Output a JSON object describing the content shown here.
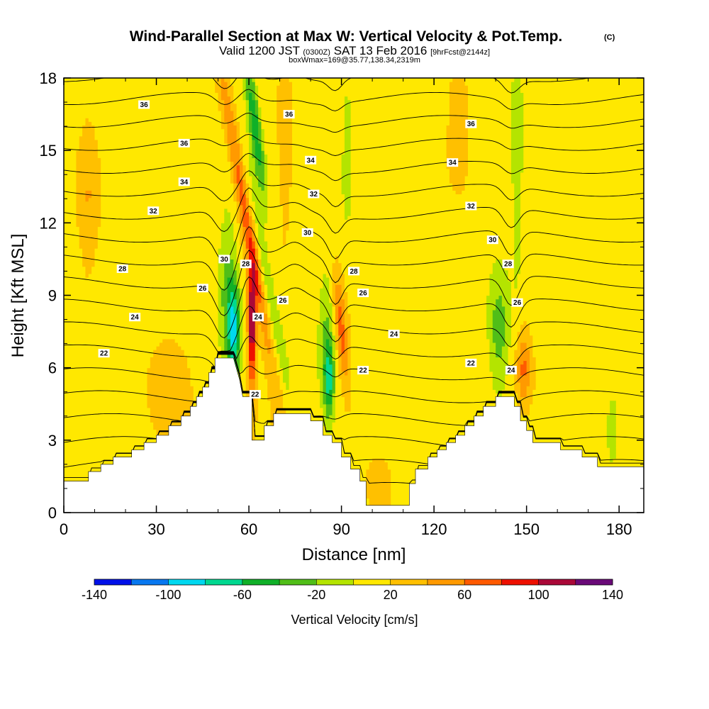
{
  "title": {
    "main": "Wind-Parallel Section at Max W: Vertical Velocity & Pot.Temp.",
    "copyright": "(C)",
    "valid_prefix": "Valid 1200 JST",
    "valid_utc": "(0300Z)",
    "valid_date": "SAT 13 Feb 2016",
    "forecast": "[9hrFcst@2144z]",
    "box": "boxWmax=169@35.77,138.34,2319m"
  },
  "chart_data": {
    "type": "heatmap",
    "xlabel": "Distance [nm]",
    "ylabel": "Height [Kft MSL]",
    "xlim": [
      0,
      188
    ],
    "ylim": [
      0,
      18
    ],
    "x_ticks": [
      0,
      30,
      60,
      90,
      120,
      150,
      180
    ],
    "y_ticks": [
      0,
      3,
      6,
      9,
      12,
      15,
      18
    ],
    "x_tick_labels": [
      "0",
      "30",
      "60",
      "90",
      "120",
      "150",
      "180"
    ],
    "y_tick_labels": [
      "0",
      "3",
      "6",
      "9",
      "12",
      "15",
      "18"
    ],
    "colorbar": {
      "label": "Vertical Velocity [cm/s]",
      "min": -140,
      "max": 140,
      "step": 20,
      "tick_values": [
        -140,
        -100,
        -60,
        -20,
        20,
        60,
        100,
        140
      ],
      "tick_labels": [
        "-140",
        "-100",
        "-60",
        "-20",
        "20",
        "60",
        "100",
        "140"
      ],
      "colors": [
        "#0010e8",
        "#0878f0",
        "#00d8f0",
        "#00d890",
        "#10b028",
        "#50be18",
        "#b4e400",
        "#ffe800",
        "#ffc000",
        "#ff9a00",
        "#ff5a00",
        "#ee1000",
        "#aa0838",
        "#6a0a78"
      ]
    },
    "terrain": [
      [
        0,
        1.3
      ],
      [
        8,
        1.3
      ],
      [
        8,
        1.7
      ],
      [
        12,
        1.7
      ],
      [
        12,
        2.0
      ],
      [
        16,
        2.0
      ],
      [
        16,
        2.3
      ],
      [
        22,
        2.3
      ],
      [
        22,
        2.6
      ],
      [
        26,
        2.6
      ],
      [
        26,
        2.9
      ],
      [
        30,
        2.9
      ],
      [
        30,
        3.2
      ],
      [
        34,
        3.2
      ],
      [
        34,
        3.6
      ],
      [
        38,
        3.6
      ],
      [
        38,
        4.0
      ],
      [
        41,
        4.0
      ],
      [
        41,
        4.4
      ],
      [
        43,
        4.4
      ],
      [
        43,
        4.8
      ],
      [
        45,
        4.8
      ],
      [
        45,
        5.2
      ],
      [
        47,
        5.2
      ],
      [
        47,
        5.8
      ],
      [
        49,
        5.8
      ],
      [
        49,
        6.4
      ],
      [
        55,
        6.4
      ],
      [
        57,
        5.5
      ],
      [
        58,
        4.8
      ],
      [
        61,
        4.8
      ],
      [
        61,
        3.0
      ],
      [
        63,
        3.0
      ],
      [
        65,
        3.0
      ],
      [
        65,
        3.6
      ],
      [
        68,
        3.6
      ],
      [
        68,
        4.1
      ],
      [
        80,
        4.1
      ],
      [
        80,
        3.8
      ],
      [
        82,
        3.8
      ],
      [
        84,
        3.8
      ],
      [
        84,
        3.2
      ],
      [
        87,
        3.2
      ],
      [
        87,
        2.9
      ],
      [
        90,
        2.9
      ],
      [
        90,
        2.3
      ],
      [
        93,
        2.3
      ],
      [
        93,
        1.8
      ],
      [
        96,
        1.8
      ],
      [
        96,
        1.3
      ],
      [
        98,
        1.3
      ],
      [
        98,
        0.3
      ],
      [
        104,
        0.3
      ],
      [
        112,
        0.3
      ],
      [
        112,
        1.2
      ],
      [
        114,
        1.2
      ],
      [
        114,
        1.8
      ],
      [
        118,
        1.8
      ],
      [
        118,
        2.3
      ],
      [
        121,
        2.3
      ],
      [
        121,
        2.6
      ],
      [
        124,
        2.6
      ],
      [
        124,
        2.9
      ],
      [
        127,
        2.9
      ],
      [
        127,
        3.2
      ],
      [
        130,
        3.2
      ],
      [
        130,
        3.6
      ],
      [
        133,
        3.6
      ],
      [
        133,
        4.0
      ],
      [
        136,
        4.0
      ],
      [
        136,
        4.4
      ],
      [
        140,
        4.4
      ],
      [
        140,
        4.8
      ],
      [
        146,
        4.8
      ],
      [
        146,
        4.4
      ],
      [
        148,
        4.4
      ],
      [
        148,
        3.8
      ],
      [
        150,
        3.8
      ],
      [
        150,
        3.4
      ],
      [
        152,
        3.4
      ],
      [
        152,
        2.9
      ],
      [
        161,
        2.9
      ],
      [
        161,
        2.6
      ],
      [
        168,
        2.6
      ],
      [
        168,
        2.3
      ],
      [
        173,
        2.3
      ],
      [
        173,
        1.9
      ],
      [
        188,
        1.9
      ]
    ],
    "features": [
      {
        "x": 59,
        "y": 12.5,
        "sx": 2.4,
        "sy": 6.5,
        "tilt": -0.45,
        "value": 70
      },
      {
        "x": 61,
        "y": 8.5,
        "sx": 1.5,
        "sy": 2.0,
        "tilt": 0.0,
        "value": 60
      },
      {
        "x": 62,
        "y": 16.0,
        "sx": 2.0,
        "sy": 3.0,
        "tilt": -0.3,
        "value": -70
      },
      {
        "x": 65,
        "y": 10.0,
        "sx": 2.4,
        "sy": 5.0,
        "tilt": -0.5,
        "value": -40
      },
      {
        "x": 55,
        "y": 7.5,
        "sx": 2.0,
        "sy": 2.0,
        "tilt": 0.0,
        "value": -90
      },
      {
        "x": 53,
        "y": 9.5,
        "sx": 2.8,
        "sy": 2.6,
        "tilt": 0.0,
        "value": -35
      },
      {
        "x": 61,
        "y": 7.0,
        "sx": 1.2,
        "sy": 2.5,
        "tilt": 0.0,
        "value": 70
      },
      {
        "x": 86,
        "y": 5.5,
        "sx": 1.6,
        "sy": 1.6,
        "tilt": 0.0,
        "value": -70
      },
      {
        "x": 85,
        "y": 7.5,
        "sx": 2.2,
        "sy": 2.5,
        "tilt": 0.0,
        "value": -30
      },
      {
        "x": 90,
        "y": 7.5,
        "sx": 1.8,
        "sy": 2.4,
        "tilt": -0.2,
        "value": 55
      },
      {
        "x": 92,
        "y": 15.0,
        "sx": 2.0,
        "sy": 3.2,
        "tilt": 0.0,
        "value": -25
      },
      {
        "x": 141,
        "y": 7.5,
        "sx": 3.2,
        "sy": 2.2,
        "tilt": 0.0,
        "value": -40
      },
      {
        "x": 149,
        "y": 6.0,
        "sx": 2.2,
        "sy": 1.5,
        "tilt": 0.0,
        "value": 50
      },
      {
        "x": 147,
        "y": 15.0,
        "sx": 1.6,
        "sy": 4.5,
        "tilt": 0.0,
        "value": -30
      },
      {
        "x": 72,
        "y": 15.0,
        "sx": 2.0,
        "sy": 3.0,
        "tilt": 0.0,
        "value": 22
      },
      {
        "x": 103,
        "y": 1.0,
        "sx": 3.0,
        "sy": 1.0,
        "tilt": 0.0,
        "value": 22
      },
      {
        "x": 8,
        "y": 13.0,
        "sx": 3.0,
        "sy": 3.0,
        "tilt": 0.0,
        "value": 22
      },
      {
        "x": 33,
        "y": 5.0,
        "sx": 6.0,
        "sy": 2.0,
        "tilt": 0.0,
        "value": 22
      },
      {
        "x": 128,
        "y": 16.5,
        "sx": 3.0,
        "sy": 2.0,
        "tilt": 0.0,
        "value": 22
      },
      {
        "x": 178,
        "y": 3.5,
        "sx": 2.0,
        "sy": 1.5,
        "tilt": 0.0,
        "value": -25
      }
    ],
    "contours": {
      "levels": [
        19,
        20,
        21,
        22,
        23,
        24,
        25,
        26,
        27,
        28,
        29,
        30,
        31,
        32,
        33,
        34,
        35,
        36,
        37
      ],
      "labels": [
        {
          "text": "36",
          "x": 26,
          "y": 16.9
        },
        {
          "text": "36",
          "x": 39,
          "y": 15.3
        },
        {
          "text": "34",
          "x": 39,
          "y": 13.7
        },
        {
          "text": "32",
          "x": 29,
          "y": 12.5
        },
        {
          "text": "28",
          "x": 19,
          "y": 10.1
        },
        {
          "text": "24",
          "x": 23,
          "y": 8.1
        },
        {
          "text": "22",
          "x": 13,
          "y": 6.6
        },
        {
          "text": "30",
          "x": 52,
          "y": 10.5
        },
        {
          "text": "28",
          "x": 59,
          "y": 10.3
        },
        {
          "text": "26",
          "x": 45,
          "y": 9.3
        },
        {
          "text": "24",
          "x": 63,
          "y": 8.1
        },
        {
          "text": "22",
          "x": 62,
          "y": 4.9
        },
        {
          "text": "26",
          "x": 71,
          "y": 8.8
        },
        {
          "text": "36",
          "x": 73,
          "y": 16.5
        },
        {
          "text": "34",
          "x": 80,
          "y": 14.6
        },
        {
          "text": "32",
          "x": 81,
          "y": 13.2
        },
        {
          "text": "30",
          "x": 79,
          "y": 11.6
        },
        {
          "text": "28",
          "x": 94,
          "y": 10.0
        },
        {
          "text": "26",
          "x": 97,
          "y": 9.1
        },
        {
          "text": "24",
          "x": 107,
          "y": 7.4
        },
        {
          "text": "22",
          "x": 97,
          "y": 5.9
        },
        {
          "text": "36",
          "x": 132,
          "y": 16.1
        },
        {
          "text": "34",
          "x": 126,
          "y": 14.5
        },
        {
          "text": "32",
          "x": 132,
          "y": 12.7
        },
        {
          "text": "30",
          "x": 139,
          "y": 11.3
        },
        {
          "text": "28",
          "x": 144,
          "y": 10.3
        },
        {
          "text": "26",
          "x": 147,
          "y": 8.7
        },
        {
          "text": "22",
          "x": 132,
          "y": 6.2
        },
        {
          "text": "24",
          "x": 145,
          "y": 5.9
        }
      ]
    }
  }
}
